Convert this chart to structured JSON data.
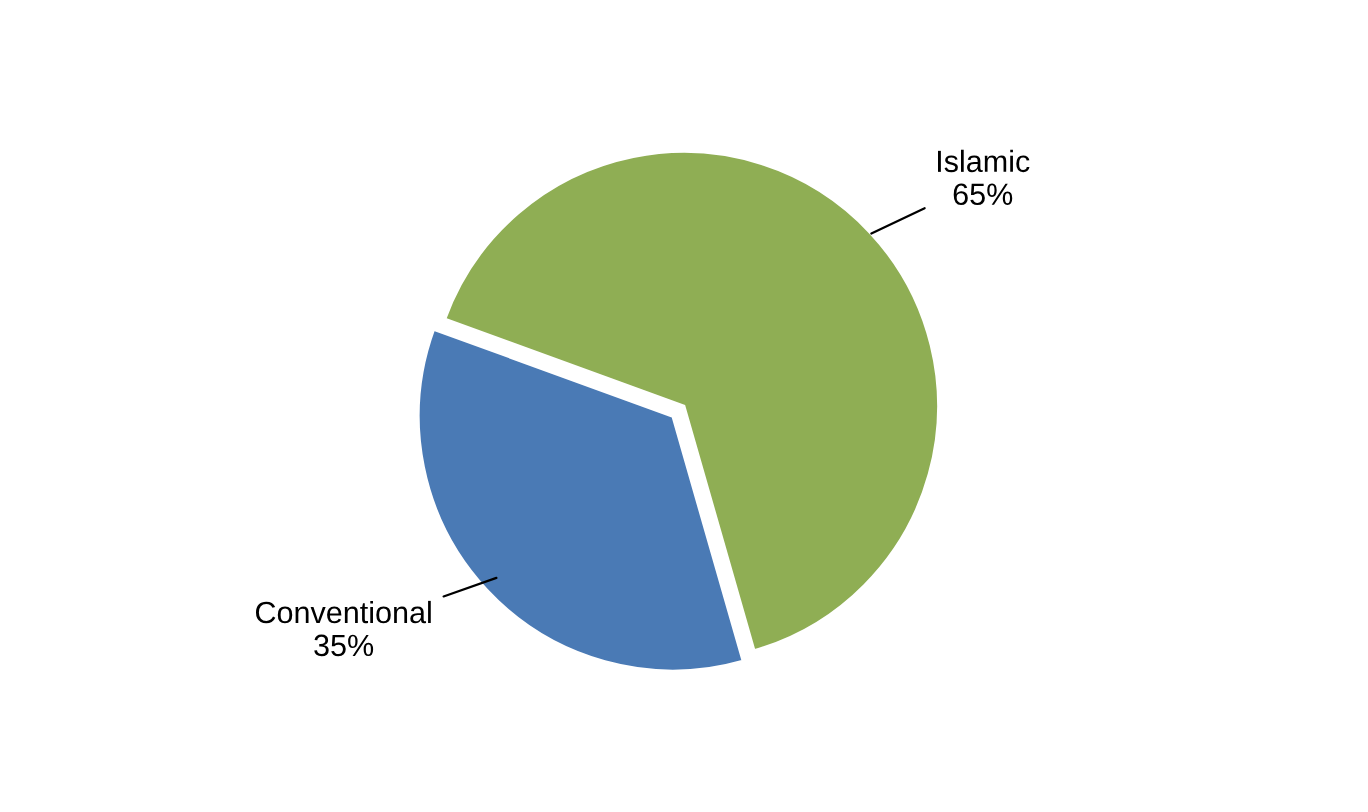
{
  "chart_data": {
    "type": "pie",
    "categories": [
      "Islamic",
      "Conventional"
    ],
    "values": [
      65,
      35
    ],
    "colors": [
      "#8fae54",
      "#4a7ab5"
    ],
    "value_labels": [
      "65%",
      "35%"
    ],
    "legend": false
  }
}
